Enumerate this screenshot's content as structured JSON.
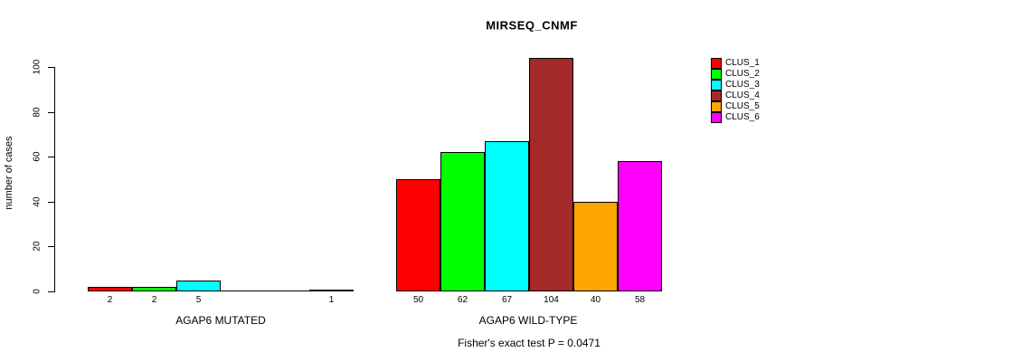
{
  "title": "MIRSEQ_CNMF",
  "footer_note": "Fisher's exact test P = 0.0471",
  "chart_data": {
    "type": "bar",
    "title": "MIRSEQ_CNMF",
    "xlabel": "",
    "ylabel": "number of cases",
    "ylim": [
      0,
      104
    ],
    "yticks": [
      0,
      20,
      40,
      60,
      80,
      100
    ],
    "grid": false,
    "legend_position": "right",
    "series_names": [
      "CLUS_1",
      "CLUS_2",
      "CLUS_3",
      "CLUS_4",
      "CLUS_5",
      "CLUS_6"
    ],
    "series_colors": [
      "#FF0000",
      "#00FF00",
      "#00FFFF",
      "#A52A2A",
      "#FFA500",
      "#FF00FF"
    ],
    "groups": [
      {
        "label": "AGAP6 MUTATED",
        "values": [
          2,
          2,
          5,
          0,
          0,
          1
        ],
        "bar_labels": [
          "2",
          "2",
          "5",
          "",
          "",
          "1"
        ]
      },
      {
        "label": "AGAP6 WILD-TYPE",
        "values": [
          50,
          62,
          67,
          104,
          40,
          58
        ],
        "bar_labels": [
          "50",
          "62",
          "67",
          "104",
          "40",
          "58"
        ]
      }
    ],
    "annotation": "Fisher's exact test P = 0.0471"
  },
  "legend": {
    "items": [
      {
        "label": "CLUS_1",
        "color": "#FF0000"
      },
      {
        "label": "CLUS_2",
        "color": "#00FF00"
      },
      {
        "label": "CLUS_3",
        "color": "#00FFFF"
      },
      {
        "label": "CLUS_4",
        "color": "#A52A2A"
      },
      {
        "label": "CLUS_5",
        "color": "#FFA500"
      },
      {
        "label": "CLUS_6",
        "color": "#FF00FF"
      }
    ]
  }
}
